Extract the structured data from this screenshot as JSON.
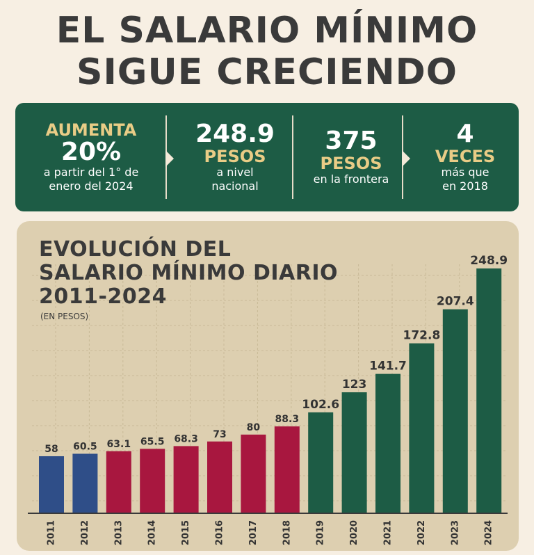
{
  "headline": {
    "line1": "EL SALARIO MÍNIMO",
    "line2": "SIGUE CRECIENDO"
  },
  "banner": {
    "item1": {
      "top": "AUMENTA",
      "big": "20%",
      "line1": "a partir del 1° de",
      "line2": "enero del 2024"
    },
    "item2": {
      "big": "248.9",
      "unit": "PESOS",
      "line1": "a nivel",
      "line2": "nacional"
    },
    "item3": {
      "big": "375",
      "unit": "PESOS",
      "line1": "en la frontera"
    },
    "item4": {
      "big": "4",
      "unit": "VECES",
      "line1": "más que",
      "line2": "en 2018"
    }
  },
  "colors": {
    "blue": "#2f4e88",
    "red": "#a8173f",
    "green": "#1d5c45",
    "gold": "#e9cc86",
    "panel": "#ddcfb0"
  },
  "chart_data": {
    "type": "bar",
    "title": "EVOLUCIÓN DEL\nSALARIO MÍNIMO DIARIO\n2011-2024",
    "subtitle": "(EN PESOS)",
    "categories": [
      "2011",
      "2012",
      "2013",
      "2014",
      "2015",
      "2016",
      "2017",
      "2018",
      "2019",
      "2020",
      "2021",
      "2022",
      "2023",
      "2024"
    ],
    "values": [
      58,
      60.5,
      63.1,
      65.5,
      68.3,
      73,
      80,
      88.3,
      102.6,
      123,
      141.7,
      172.8,
      207.4,
      248.9
    ],
    "value_labels": [
      "58",
      "60.5",
      "63.1",
      "65.5",
      "68.3",
      "73",
      "80",
      "88.3",
      "102.6",
      "123",
      "141.7",
      "172.8",
      "207.4",
      "248.9"
    ],
    "bar_colors": [
      "#2f4e88",
      "#2f4e88",
      "#a8173f",
      "#a8173f",
      "#a8173f",
      "#a8173f",
      "#a8173f",
      "#a8173f",
      "#1d5c45",
      "#1d5c45",
      "#1d5c45",
      "#1d5c45",
      "#1d5c45",
      "#1d5c45"
    ],
    "ylim": [
      0,
      248.9
    ],
    "grid": true,
    "legend": "none"
  }
}
